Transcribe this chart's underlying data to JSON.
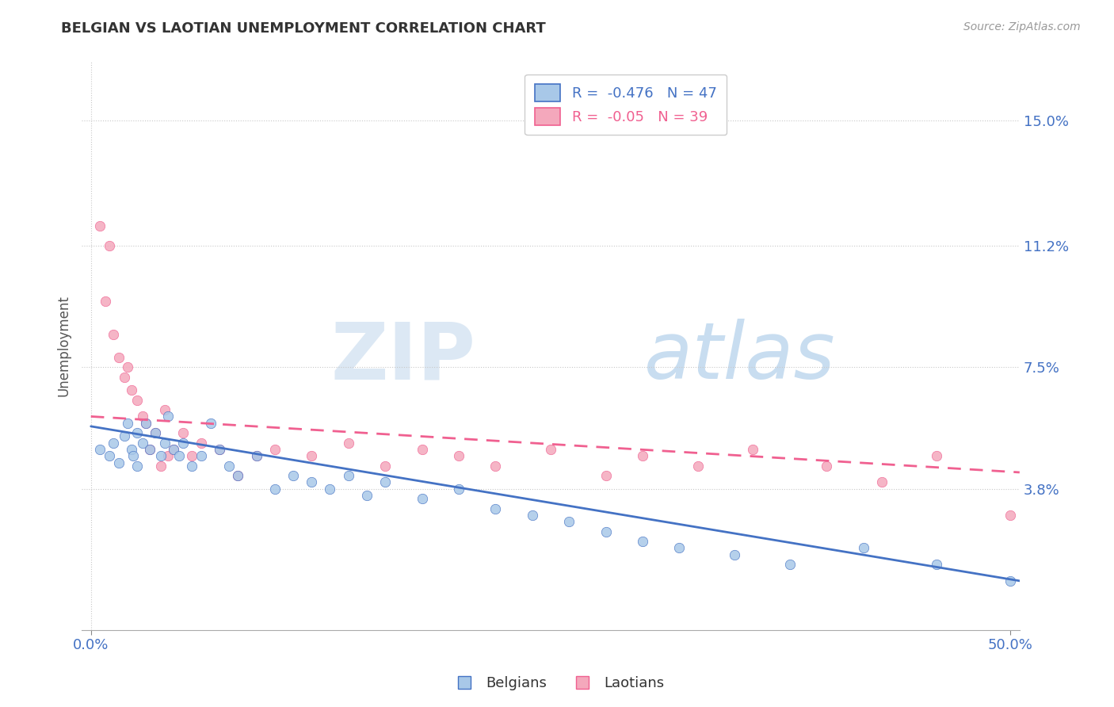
{
  "title": "BELGIAN VS LAOTIAN UNEMPLOYMENT CORRELATION CHART",
  "source": "Source: ZipAtlas.com",
  "ylabel": "Unemployment",
  "xlim": [
    -0.005,
    0.505
  ],
  "ylim": [
    -0.005,
    0.168
  ],
  "xtick_positions": [
    0.0,
    0.5
  ],
  "xticklabels": [
    "0.0%",
    "50.0%"
  ],
  "ytick_positions": [
    0.038,
    0.075,
    0.112,
    0.15
  ],
  "ytick_labels": [
    "3.8%",
    "7.5%",
    "11.2%",
    "15.0%"
  ],
  "belgian_R": -0.476,
  "belgian_N": 47,
  "laotian_R": -0.05,
  "laotian_N": 39,
  "belgian_color": "#a8c8e8",
  "laotian_color": "#f4a8bc",
  "belgian_line_color": "#4472c4",
  "laotian_line_color": "#f06090",
  "background_color": "#ffffff",
  "grid_color": "#c8c8c8",
  "belgian_scatter_x": [
    0.005,
    0.01,
    0.012,
    0.015,
    0.018,
    0.02,
    0.022,
    0.023,
    0.025,
    0.025,
    0.028,
    0.03,
    0.032,
    0.035,
    0.038,
    0.04,
    0.042,
    0.045,
    0.048,
    0.05,
    0.055,
    0.06,
    0.065,
    0.07,
    0.075,
    0.08,
    0.09,
    0.1,
    0.11,
    0.12,
    0.13,
    0.14,
    0.15,
    0.16,
    0.18,
    0.2,
    0.22,
    0.24,
    0.26,
    0.28,
    0.3,
    0.32,
    0.35,
    0.38,
    0.42,
    0.46,
    0.5
  ],
  "belgian_scatter_y": [
    0.05,
    0.048,
    0.052,
    0.046,
    0.054,
    0.058,
    0.05,
    0.048,
    0.055,
    0.045,
    0.052,
    0.058,
    0.05,
    0.055,
    0.048,
    0.052,
    0.06,
    0.05,
    0.048,
    0.052,
    0.045,
    0.048,
    0.058,
    0.05,
    0.045,
    0.042,
    0.048,
    0.038,
    0.042,
    0.04,
    0.038,
    0.042,
    0.036,
    0.04,
    0.035,
    0.038,
    0.032,
    0.03,
    0.028,
    0.025,
    0.022,
    0.02,
    0.018,
    0.015,
    0.02,
    0.015,
    0.01
  ],
  "laotian_scatter_x": [
    0.005,
    0.008,
    0.01,
    0.012,
    0.015,
    0.018,
    0.02,
    0.022,
    0.025,
    0.028,
    0.03,
    0.032,
    0.035,
    0.038,
    0.04,
    0.042,
    0.045,
    0.05,
    0.055,
    0.06,
    0.07,
    0.08,
    0.09,
    0.1,
    0.12,
    0.14,
    0.16,
    0.18,
    0.2,
    0.22,
    0.25,
    0.28,
    0.3,
    0.33,
    0.36,
    0.4,
    0.43,
    0.46,
    0.5
  ],
  "laotian_scatter_y": [
    0.118,
    0.095,
    0.112,
    0.085,
    0.078,
    0.072,
    0.075,
    0.068,
    0.065,
    0.06,
    0.058,
    0.05,
    0.055,
    0.045,
    0.062,
    0.048,
    0.05,
    0.055,
    0.048,
    0.052,
    0.05,
    0.042,
    0.048,
    0.05,
    0.048,
    0.052,
    0.045,
    0.05,
    0.048,
    0.045,
    0.05,
    0.042,
    0.048,
    0.045,
    0.05,
    0.045,
    0.04,
    0.048,
    0.03
  ],
  "belgian_trend_x": [
    0.0,
    0.505
  ],
  "belgian_trend_y": [
    0.057,
    0.01
  ],
  "laotian_trend_x": [
    0.0,
    0.505
  ],
  "laotian_trend_y": [
    0.06,
    0.043
  ]
}
